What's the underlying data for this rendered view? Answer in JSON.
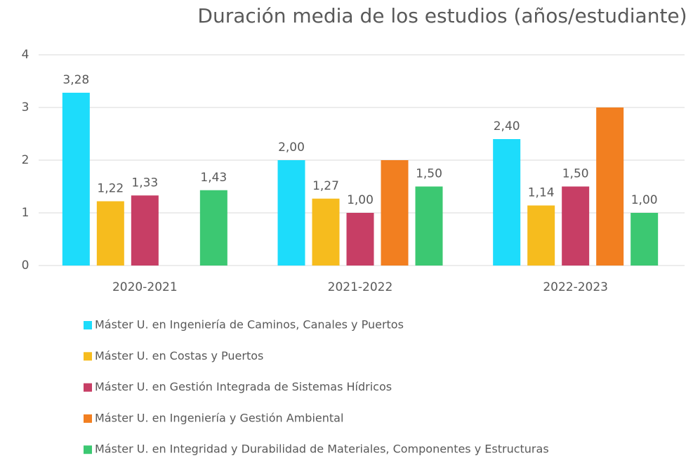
{
  "chart_data": {
    "type": "bar",
    "title": "Duración media de los estudios (años/estudiante)",
    "categories": [
      "2020-2021",
      "2021-2022",
      "2022-2023"
    ],
    "series": [
      {
        "name": "Máster U. en Ingeniería de Caminos, Canales y Puertos",
        "color": "#1ddcfb",
        "values": [
          3.28,
          2.0,
          2.4
        ],
        "value_labels": [
          "3,28",
          "2,00",
          "2,40"
        ]
      },
      {
        "name": "Máster U. en Costas y Puertos",
        "color": "#f6bc1e",
        "values": [
          1.22,
          1.27,
          1.14
        ],
        "value_labels": [
          "1,22",
          "1,27",
          "1,14"
        ]
      },
      {
        "name": "Máster U. en Gestión Integrada de Sistemas Hídricos",
        "color": "#c73e65",
        "values": [
          1.33,
          1.0,
          1.5
        ],
        "value_labels": [
          "1,33",
          "1,00",
          "1,50"
        ]
      },
      {
        "name": "Máster U. en Ingeniería y Gestión Ambiental",
        "color": "#f27f20",
        "values": [
          null,
          2.0,
          3.0
        ]
      },
      {
        "name": "Máster U. en Integridad y Durabilidad de Materiales, Componentes y Estructuras",
        "color": "#3cc872",
        "values": [
          1.43,
          1.5,
          1.0
        ],
        "value_labels": [
          "1,43",
          "1,50",
          "1,00"
        ]
      }
    ],
    "ylim": [
      0,
      4
    ],
    "yticks": [
      0,
      1,
      2,
      3,
      4
    ],
    "grid": true,
    "legend": "bottom"
  }
}
